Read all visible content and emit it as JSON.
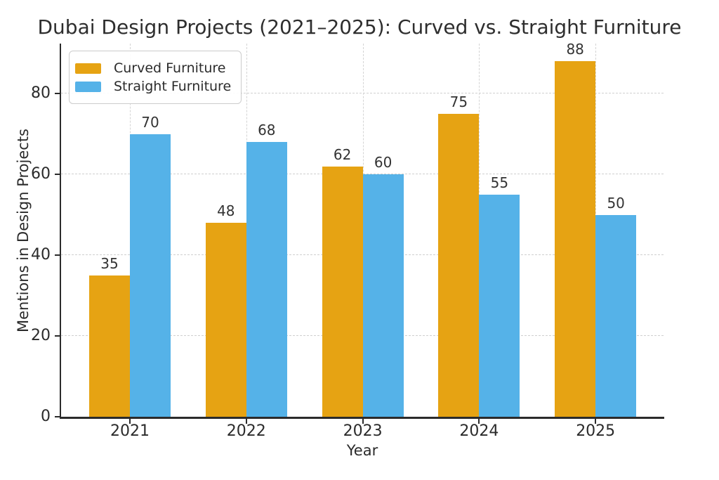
{
  "chart_data": {
    "type": "bar",
    "title": "Dubai Design Projects (2021–2025): Curved vs. Straight Furniture",
    "xlabel": "Year",
    "ylabel": "Mentions in Design Projects",
    "categories": [
      "2021",
      "2022",
      "2023",
      "2024",
      "2025"
    ],
    "series": [
      {
        "name": "Curved Furniture",
        "color": "#E6A313",
        "values": [
          35,
          48,
          62,
          75,
          88
        ]
      },
      {
        "name": "Straight Furniture",
        "color": "#55B2E8",
        "values": [
          70,
          68,
          60,
          55,
          50
        ]
      }
    ],
    "yticks": [
      0,
      20,
      40,
      60,
      80
    ],
    "ylim": [
      0,
      92.4
    ],
    "grid": "dashed",
    "legend_position": "upper-left",
    "value_labels": true
  },
  "colors": {
    "background": "#ffffff",
    "spine": "#2b2b2b",
    "grid": "#cfcfcf",
    "text": "#2b2b2b"
  }
}
